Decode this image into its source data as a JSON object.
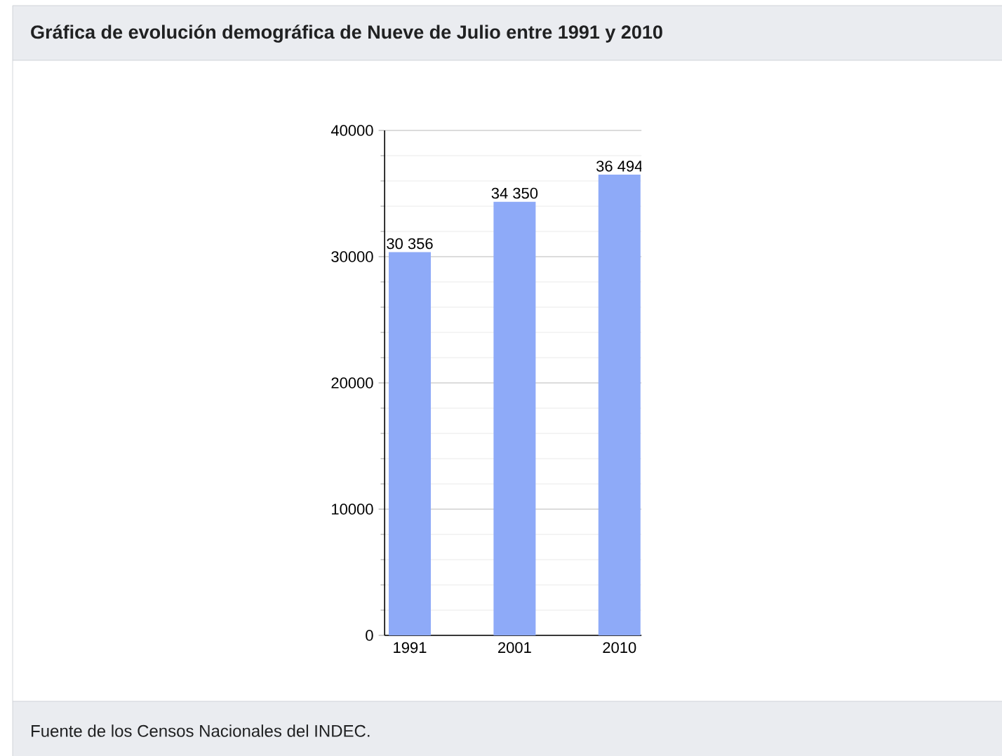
{
  "chart_data": {
    "type": "bar",
    "title": "Gráfica de evolución demográfica de Nueve de Julio entre 1991 y 2010",
    "categories": [
      "1991",
      "2001",
      "2010"
    ],
    "values": [
      30356,
      34350,
      36494
    ],
    "value_labels": [
      "30 356",
      "34 350",
      "36 494"
    ],
    "color": "#8eaaf8",
    "ylim": [
      0,
      40000
    ],
    "yticks": [
      0,
      10000,
      20000,
      30000,
      40000
    ],
    "grid": "y",
    "annotations": [
      "Fuente de los Censos Nacionales del INDEC."
    ]
  }
}
